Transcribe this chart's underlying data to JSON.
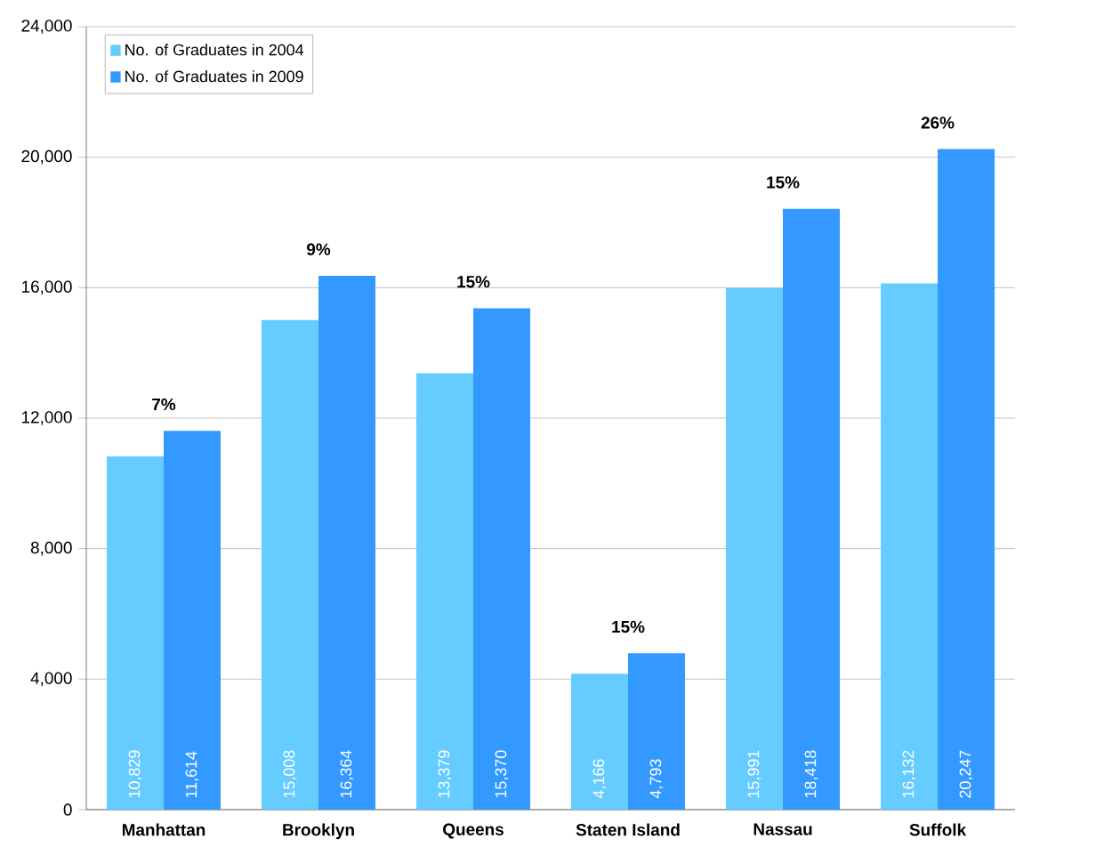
{
  "chart_data": {
    "type": "bar",
    "categories": [
      "Manhattan",
      "Brooklyn",
      "Queens",
      "Staten Island",
      "Nassau",
      "Suffolk"
    ],
    "series": [
      {
        "name": "No. of Graduates in 2004",
        "color": "#66ccff",
        "values": [
          10829,
          15008,
          13379,
          4166,
          15991,
          16132
        ],
        "value_labels": [
          "10,829",
          "15,008",
          "13,379",
          "4,166",
          "15,991",
          "16,132"
        ]
      },
      {
        "name": "No. of Graduates in 2009",
        "color": "#3399ff",
        "values": [
          11614,
          16364,
          15370,
          4793,
          18418,
          20247
        ],
        "value_labels": [
          "11,614",
          "16,364",
          "15,370",
          "4,793",
          "18,418",
          "20,247"
        ]
      }
    ],
    "annotations": [
      {
        "text": "7%",
        "x": "Manhattan",
        "y": 11614
      },
      {
        "text": "9%",
        "x": "Brooklyn",
        "y": 16364
      },
      {
        "text": "15%",
        "x": "Queens",
        "y": 15370
      },
      {
        "text": "15%",
        "x": "Staten Island",
        "y": 4793
      },
      {
        "text": "15%",
        "x": "Nassau",
        "y": 18418
      },
      {
        "text": "26%",
        "x": "Suffolk",
        "y": 20247
      }
    ],
    "ylim": [
      0,
      24000
    ],
    "yticks": [
      0,
      {
        "value": 4000,
        "label": "4,000"
      },
      {
        "value": 8000,
        "label": "8,000"
      },
      {
        "value": 12000,
        "label": "12,000"
      },
      {
        "value": 16000,
        "label": "16,000"
      },
      {
        "value": 20000,
        "label": "20,000"
      },
      {
        "value": 24000,
        "label": "24,000"
      }
    ],
    "grid": "y",
    "legend": "top left"
  }
}
